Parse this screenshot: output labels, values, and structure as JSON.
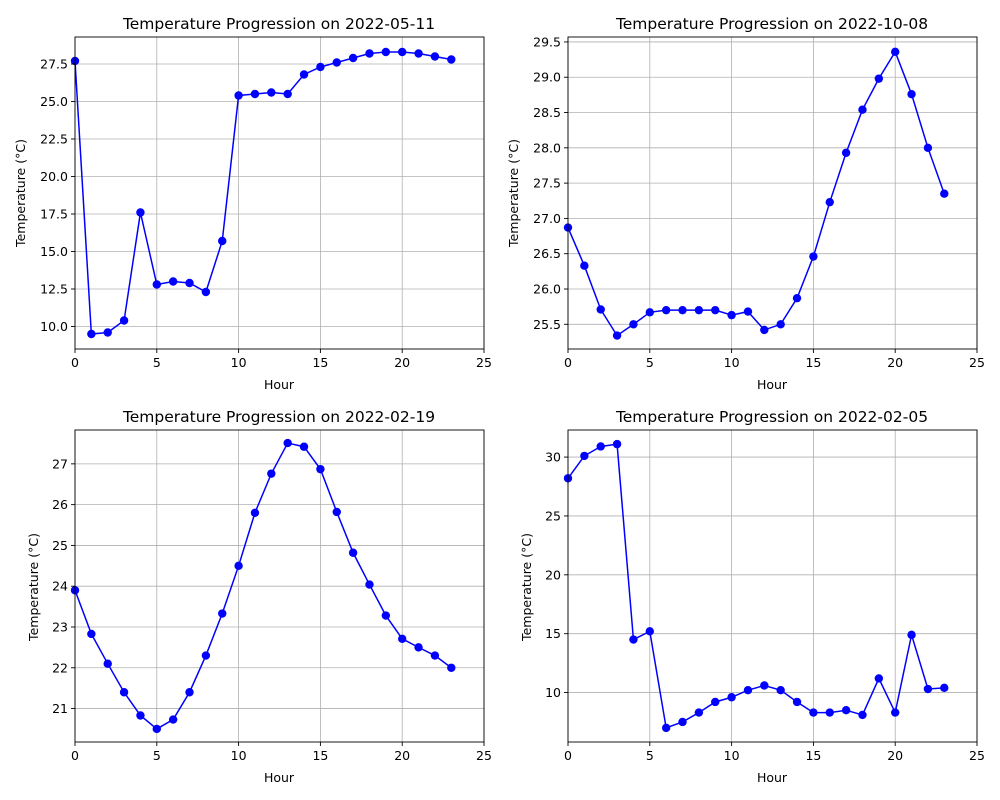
{
  "figure": {
    "background": "#ffffff"
  },
  "style": {
    "line_color": "#0000ff",
    "grid_color": "#b0b0b0",
    "axis_color": "#000000"
  },
  "chart_data": [
    {
      "type": "line",
      "title": "Temperature Progression on 2022-05-11",
      "xlabel": "Hour",
      "ylabel": "Temperature (°C)",
      "grid": true,
      "marker": "circle",
      "xlim": [
        0,
        25
      ],
      "ylim": [
        8.5,
        29.3
      ],
      "xticks": [
        0,
        5,
        10,
        15,
        20,
        25
      ],
      "yticks": [
        10.0,
        12.5,
        15.0,
        17.5,
        20.0,
        22.5,
        25.0,
        27.5
      ],
      "ytick_labels": [
        "10.0",
        "12.5",
        "15.0",
        "17.5",
        "20.0",
        "22.5",
        "25.0",
        "27.5"
      ],
      "x": [
        0,
        1,
        2,
        3,
        4,
        5,
        6,
        7,
        8,
        9,
        10,
        11,
        12,
        13,
        14,
        15,
        16,
        17,
        18,
        19,
        20,
        21,
        22,
        23
      ],
      "y": [
        27.7,
        9.5,
        9.6,
        10.4,
        17.6,
        12.8,
        13.0,
        12.9,
        12.3,
        15.7,
        25.4,
        25.5,
        25.6,
        25.5,
        26.8,
        27.3,
        27.6,
        27.9,
        28.2,
        28.3,
        28.3,
        28.2,
        28.0,
        27.8
      ]
    },
    {
      "type": "line",
      "title": "Temperature Progression on 2022-10-08",
      "xlabel": "Hour",
      "ylabel": "Temperature (°C)",
      "grid": true,
      "marker": "circle",
      "xlim": [
        0,
        25
      ],
      "ylim": [
        25.15,
        29.57
      ],
      "xticks": [
        0,
        5,
        10,
        15,
        20,
        25
      ],
      "yticks": [
        25.5,
        26.0,
        26.5,
        27.0,
        27.5,
        28.0,
        28.5,
        29.0,
        29.5
      ],
      "ytick_labels": [
        "25.5",
        "26.0",
        "26.5",
        "27.0",
        "27.5",
        "28.0",
        "28.5",
        "29.0",
        "29.5"
      ],
      "x": [
        0,
        1,
        2,
        3,
        4,
        5,
        6,
        7,
        8,
        9,
        10,
        11,
        12,
        13,
        14,
        15,
        16,
        17,
        18,
        19,
        20,
        21,
        22,
        23
      ],
      "y": [
        26.87,
        26.33,
        25.71,
        25.34,
        25.5,
        25.67,
        25.7,
        25.7,
        25.7,
        25.7,
        25.63,
        25.68,
        25.42,
        25.5,
        25.87,
        26.46,
        27.23,
        27.93,
        28.54,
        28.98,
        29.36,
        28.76,
        28.0,
        27.35
      ]
    },
    {
      "type": "line",
      "title": "Temperature Progression on 2022-02-19",
      "xlabel": "Hour",
      "ylabel": "Temperature (°C)",
      "grid": true,
      "marker": "circle",
      "xlim": [
        0,
        25
      ],
      "ylim": [
        20.18,
        27.83
      ],
      "xticks": [
        0,
        5,
        10,
        15,
        20,
        25
      ],
      "yticks": [
        21,
        22,
        23,
        24,
        25,
        26,
        27
      ],
      "ytick_labels": [
        "21",
        "22",
        "23",
        "24",
        "25",
        "26",
        "27"
      ],
      "x": [
        0,
        1,
        2,
        3,
        4,
        5,
        6,
        7,
        8,
        9,
        10,
        11,
        12,
        13,
        14,
        15,
        16,
        17,
        18,
        19,
        20,
        21,
        22,
        23
      ],
      "y": [
        23.9,
        22.83,
        22.1,
        21.4,
        20.83,
        20.5,
        20.73,
        21.4,
        22.3,
        23.33,
        24.5,
        25.8,
        26.76,
        27.51,
        27.42,
        26.87,
        25.82,
        24.82,
        24.04,
        23.28,
        22.71,
        22.5,
        22.3,
        22.0
      ]
    },
    {
      "type": "line",
      "title": "Temperature Progression on 2022-02-05",
      "xlabel": "Hour",
      "ylabel": "Temperature (°C)",
      "grid": true,
      "marker": "circle",
      "xlim": [
        0,
        25
      ],
      "ylim": [
        5.8,
        32.3
      ],
      "xticks": [
        0,
        5,
        10,
        15,
        20,
        25
      ],
      "yticks": [
        10,
        15,
        20,
        25,
        30
      ],
      "ytick_labels": [
        "10",
        "15",
        "20",
        "25",
        "30"
      ],
      "x": [
        0,
        1,
        2,
        3,
        4,
        5,
        6,
        7,
        8,
        9,
        10,
        11,
        12,
        13,
        14,
        15,
        16,
        17,
        18,
        19,
        20,
        21,
        22,
        23
      ],
      "y": [
        28.2,
        30.1,
        30.9,
        31.1,
        14.5,
        15.2,
        7.0,
        7.5,
        8.3,
        9.2,
        9.6,
        10.2,
        10.6,
        10.2,
        9.2,
        8.3,
        8.3,
        8.5,
        8.1,
        11.2,
        8.3,
        14.9,
        10.3,
        10.4
      ]
    }
  ]
}
